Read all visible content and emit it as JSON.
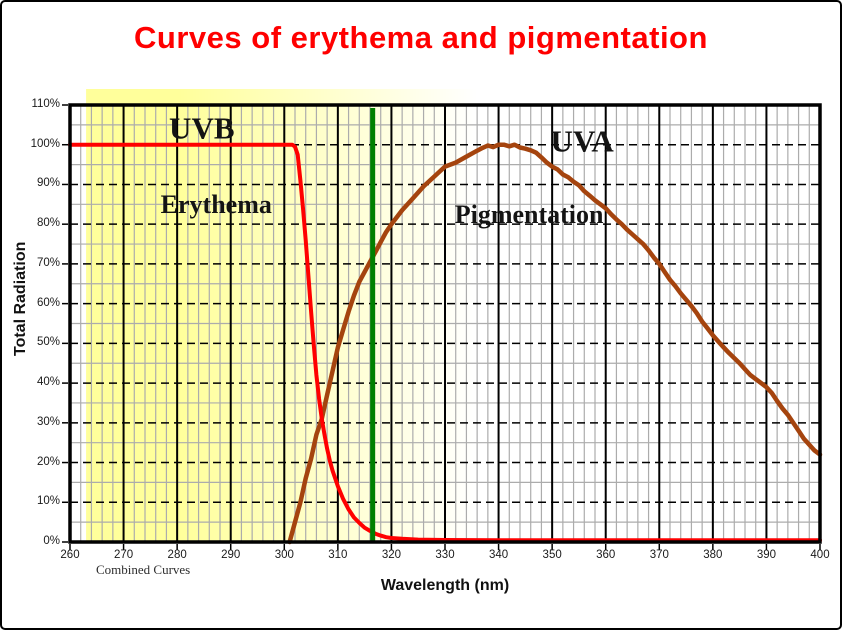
{
  "title": "Curves of erythema and pigmentation",
  "colors": {
    "title": "#FF0000",
    "erythema_curve": "#FF0000",
    "pigmentation_curve": "#A5440E",
    "marker_line": "#008000",
    "uvb_band": "#FFFF9B",
    "grid_major": "#000000",
    "grid_minor": "#ACACAC",
    "plot_border": "#000000"
  },
  "labels": {
    "uvb": "UVB",
    "uva": "UVA",
    "combined": "Combined Curves"
  },
  "chart_data": {
    "type": "line",
    "title": "Curves of erythema and pigmentation",
    "xlabel": "Wavelength (nm)",
    "ylabel": "Total Radiation",
    "xlim": [
      260,
      400
    ],
    "ylim": [
      0,
      110
    ],
    "grid": "on",
    "legend_position": "none",
    "x_ticks": [
      260,
      270,
      280,
      290,
      300,
      310,
      320,
      330,
      340,
      350,
      360,
      370,
      380,
      390,
      400
    ],
    "x_minor_step_nm": 2,
    "y_ticks": [
      0,
      10,
      20,
      30,
      40,
      50,
      60,
      70,
      80,
      90,
      100,
      110
    ],
    "y_tick_labels": [
      "0%",
      "10%",
      "20%",
      "30%",
      "40%",
      "50%",
      "60%",
      "70%",
      "80%",
      "90%",
      "100%",
      "110%"
    ],
    "y_minor_step_pct": 5,
    "marker_line": {
      "x_nm": 316.5,
      "color": "#008000"
    },
    "uvb_highlight_band": {
      "x_start_nm": 263,
      "x_solid_until_nm": 280.5,
      "x_end_nm": 336,
      "color": "#FFFF9B"
    },
    "annotations": [
      {
        "id": "uvb",
        "text": "UVB",
        "x_nm": 284.6,
        "y_pct": 104.2,
        "size": "big"
      },
      {
        "id": "uva",
        "text": "UVA",
        "x_nm": 355.6,
        "y_pct": 100.9,
        "size": "big"
      },
      {
        "id": "erythema",
        "text": "Erythema",
        "x_nm": 287.3,
        "y_pct": 84.8,
        "size": "mid"
      },
      {
        "id": "pigmentation",
        "text": "Pigmentation",
        "x_nm": 345.7,
        "y_pct": 82.3,
        "size": "mid"
      }
    ],
    "series": [
      {
        "name": "Pigmentation",
        "color": "#A5440E",
        "width": 4.5,
        "points": [
          [
            301,
            0
          ],
          [
            302,
            5
          ],
          [
            303,
            10
          ],
          [
            304,
            16
          ],
          [
            305,
            21
          ],
          [
            306,
            27
          ],
          [
            307,
            31
          ],
          [
            308,
            37
          ],
          [
            309,
            43
          ],
          [
            310,
            49
          ],
          [
            311,
            53.5
          ],
          [
            312,
            58
          ],
          [
            313,
            62
          ],
          [
            314,
            65.5
          ],
          [
            315,
            68
          ],
          [
            316,
            70.5
          ],
          [
            317,
            73
          ],
          [
            318,
            75.5
          ],
          [
            319,
            78
          ],
          [
            320,
            80
          ],
          [
            322,
            83.5
          ],
          [
            324,
            86.5
          ],
          [
            326,
            89.5
          ],
          [
            328,
            92
          ],
          [
            330,
            94.5
          ],
          [
            332,
            95.5
          ],
          [
            334,
            97
          ],
          [
            336,
            98.5
          ],
          [
            337,
            99.2
          ],
          [
            338,
            99.8
          ],
          [
            339,
            99.4
          ],
          [
            340,
            100
          ],
          [
            341,
            100
          ],
          [
            342,
            99.6
          ],
          [
            343,
            100
          ],
          [
            344,
            99.3
          ],
          [
            345,
            99
          ],
          [
            346,
            98.6
          ],
          [
            347,
            98
          ],
          [
            348,
            96.8
          ],
          [
            349,
            95.5
          ],
          [
            350,
            94.5
          ],
          [
            351,
            93.8
          ],
          [
            352,
            92.5
          ],
          [
            353,
            91.8
          ],
          [
            354,
            90.7
          ],
          [
            355,
            89.8
          ],
          [
            356,
            88.3
          ],
          [
            357,
            87.2
          ],
          [
            358,
            86
          ],
          [
            359,
            85
          ],
          [
            360,
            84
          ],
          [
            361,
            82.5
          ],
          [
            362,
            81.2
          ],
          [
            363,
            80
          ],
          [
            364,
            78.6
          ],
          [
            365,
            77.4
          ],
          [
            366,
            76.2
          ],
          [
            367,
            75
          ],
          [
            368,
            73.4
          ],
          [
            369,
            71.6
          ],
          [
            370,
            70
          ],
          [
            371,
            68
          ],
          [
            372,
            66
          ],
          [
            373,
            64.4
          ],
          [
            374,
            62.6
          ],
          [
            375,
            61
          ],
          [
            376,
            59.4
          ],
          [
            377,
            57.6
          ],
          [
            378,
            55.5
          ],
          [
            379,
            53.8
          ],
          [
            380,
            52
          ],
          [
            381,
            50.5
          ],
          [
            382,
            49
          ],
          [
            383,
            47.6
          ],
          [
            384,
            46.3
          ],
          [
            385,
            45
          ],
          [
            386,
            43.5
          ],
          [
            387,
            42
          ],
          [
            388,
            41
          ],
          [
            389,
            40
          ],
          [
            390,
            39
          ],
          [
            391,
            37.5
          ],
          [
            392,
            35.5
          ],
          [
            393,
            33.6
          ],
          [
            394,
            32
          ],
          [
            395,
            30
          ],
          [
            396,
            28
          ],
          [
            397,
            26
          ],
          [
            398,
            24.5
          ],
          [
            399,
            23
          ],
          [
            400,
            22
          ]
        ]
      },
      {
        "name": "Erythema",
        "color": "#FF0000",
        "width": 4,
        "points": [
          [
            260,
            100
          ],
          [
            290,
            100
          ],
          [
            298,
            100
          ],
          [
            300,
            100
          ],
          [
            301.5,
            100
          ],
          [
            302,
            99.5
          ],
          [
            302.5,
            97.5
          ],
          [
            303,
            91
          ],
          [
            303.5,
            84
          ],
          [
            304,
            76
          ],
          [
            304.5,
            67
          ],
          [
            305,
            58
          ],
          [
            305.5,
            49.5
          ],
          [
            306,
            42
          ],
          [
            306.5,
            36
          ],
          [
            307,
            31
          ],
          [
            307.5,
            27
          ],
          [
            308,
            23.5
          ],
          [
            308.5,
            20.5
          ],
          [
            309,
            18
          ],
          [
            310,
            14
          ],
          [
            311,
            10.8
          ],
          [
            312,
            8.2
          ],
          [
            313,
            6.2
          ],
          [
            314,
            4.8
          ],
          [
            315,
            3.6
          ],
          [
            316,
            2.8
          ],
          [
            317,
            2.1
          ],
          [
            318,
            1.6
          ],
          [
            319,
            1.2
          ],
          [
            320,
            1
          ],
          [
            322,
            0.8
          ],
          [
            325,
            0.6
          ],
          [
            330,
            0.5
          ],
          [
            340,
            0.45
          ],
          [
            350,
            0.45
          ],
          [
            360,
            0.45
          ],
          [
            370,
            0.45
          ],
          [
            380,
            0.45
          ],
          [
            390,
            0.45
          ],
          [
            400,
            0.45
          ]
        ]
      }
    ]
  }
}
